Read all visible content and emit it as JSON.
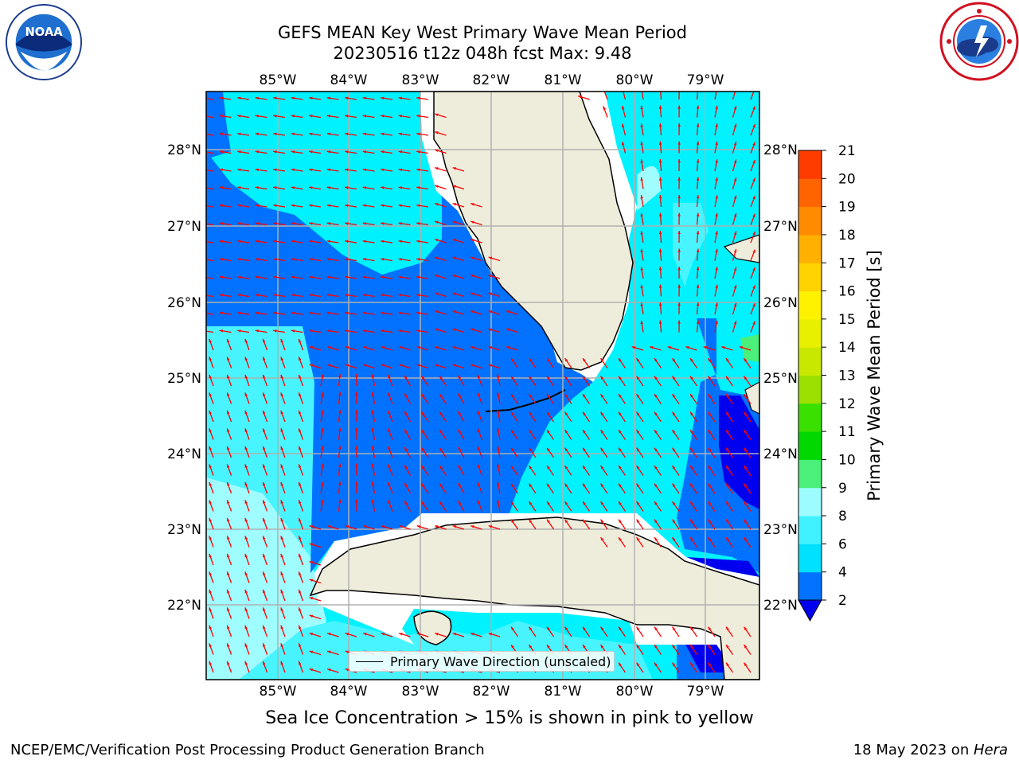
{
  "title_line1": "GEFS MEAN Key West Primary Wave Mean Period",
  "title_line2": "20230516 t12z 048h fcst   Max: 9.48",
  "logos": {
    "left": "noaa-logo",
    "right": "nws-logo"
  },
  "map": {
    "lon_labels": [
      "85°W",
      "84°W",
      "83°W",
      "82°W",
      "81°W",
      "80°W",
      "79°W"
    ],
    "lat_labels": [
      "28°N",
      "27°N",
      "26°N",
      "25°N",
      "24°N",
      "23°N",
      "22°N"
    ],
    "legend_text": "Primary Wave Direction (unscaled)",
    "arrow_color": "#ff0000",
    "land_color": "#eeeddc"
  },
  "colorbar": {
    "label": "Primary Wave Mean Period [s]",
    "ticks": [
      "2",
      "4",
      "6",
      "8",
      "9",
      "10",
      "11",
      "12",
      "13",
      "14",
      "15",
      "16",
      "17",
      "18",
      "19",
      "20",
      "21"
    ],
    "colors": [
      "#0072ff",
      "#00e0ff",
      "#40f2ff",
      "#9dfcff",
      "#4af07a",
      "#00d800",
      "#3ae000",
      "#9be000",
      "#c8e800",
      "#e8f000",
      "#fff200",
      "#ffd300",
      "#ffb000",
      "#ff8c00",
      "#ff6400",
      "#ff3c00",
      "#f00000"
    ],
    "under_color": "#0000ee"
  },
  "caption": "Sea Ice Concentration > 15% is shown in pink to yellow",
  "footer_left": "NCEP/EMC/Verification Post Processing Product Generation Branch",
  "footer_date": "18 May 2023 on ",
  "footer_host": "Hera"
}
